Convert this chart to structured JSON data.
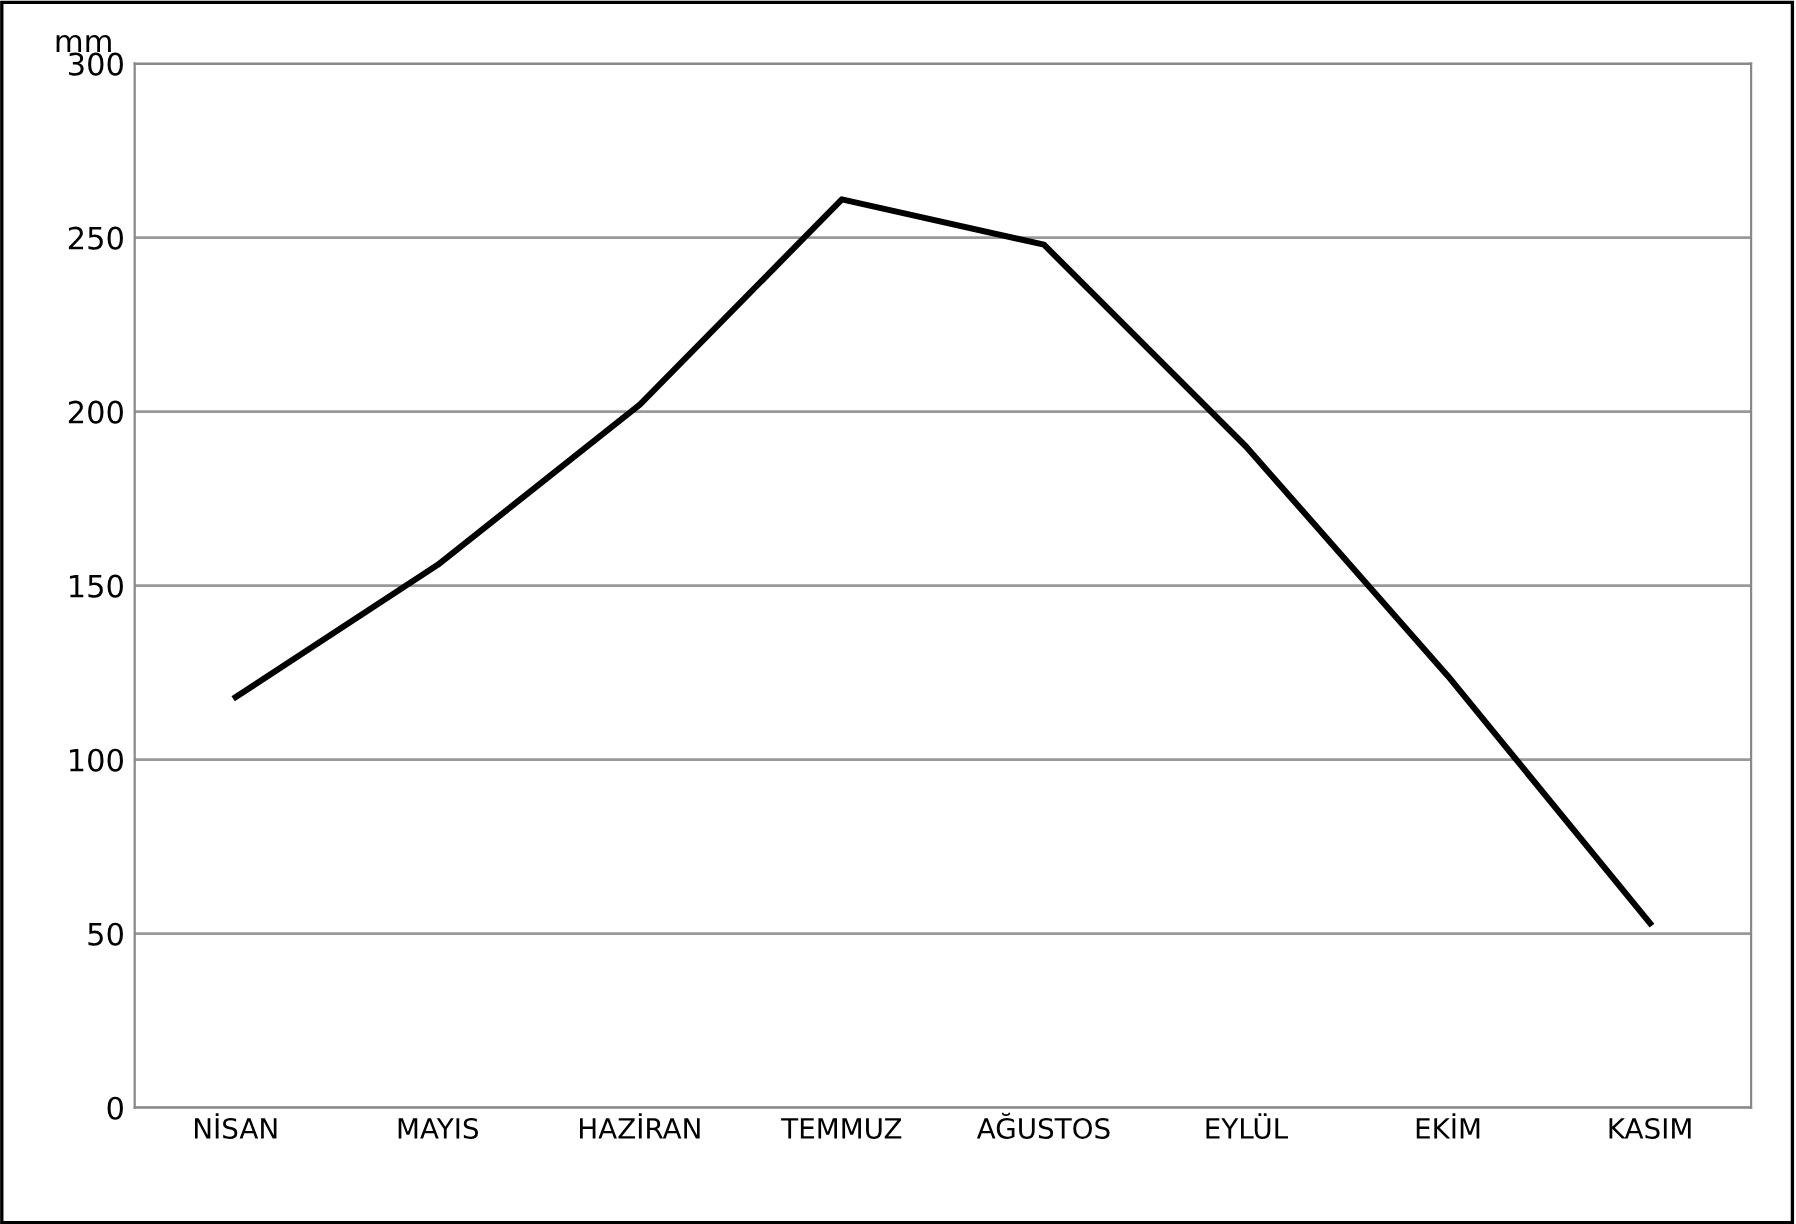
{
  "chart_data": {
    "type": "line",
    "ylabel": "mm",
    "categories": [
      "NİSAN",
      "MAYIS",
      "HAZİRAN",
      "TEMMUZ",
      "AĞUSTOS",
      "EYLÜL",
      "EKİM",
      "KASIM"
    ],
    "series": [
      {
        "color": "#000000",
        "values": [
          118,
          156,
          202,
          261,
          248,
          190,
          124,
          53
        ]
      }
    ],
    "ylim": [
      0,
      300
    ],
    "yticks": [
      0,
      50,
      100,
      150,
      200,
      250,
      300
    ],
    "grid": "y",
    "legend": false,
    "marker": "none",
    "line_style": "solid"
  }
}
